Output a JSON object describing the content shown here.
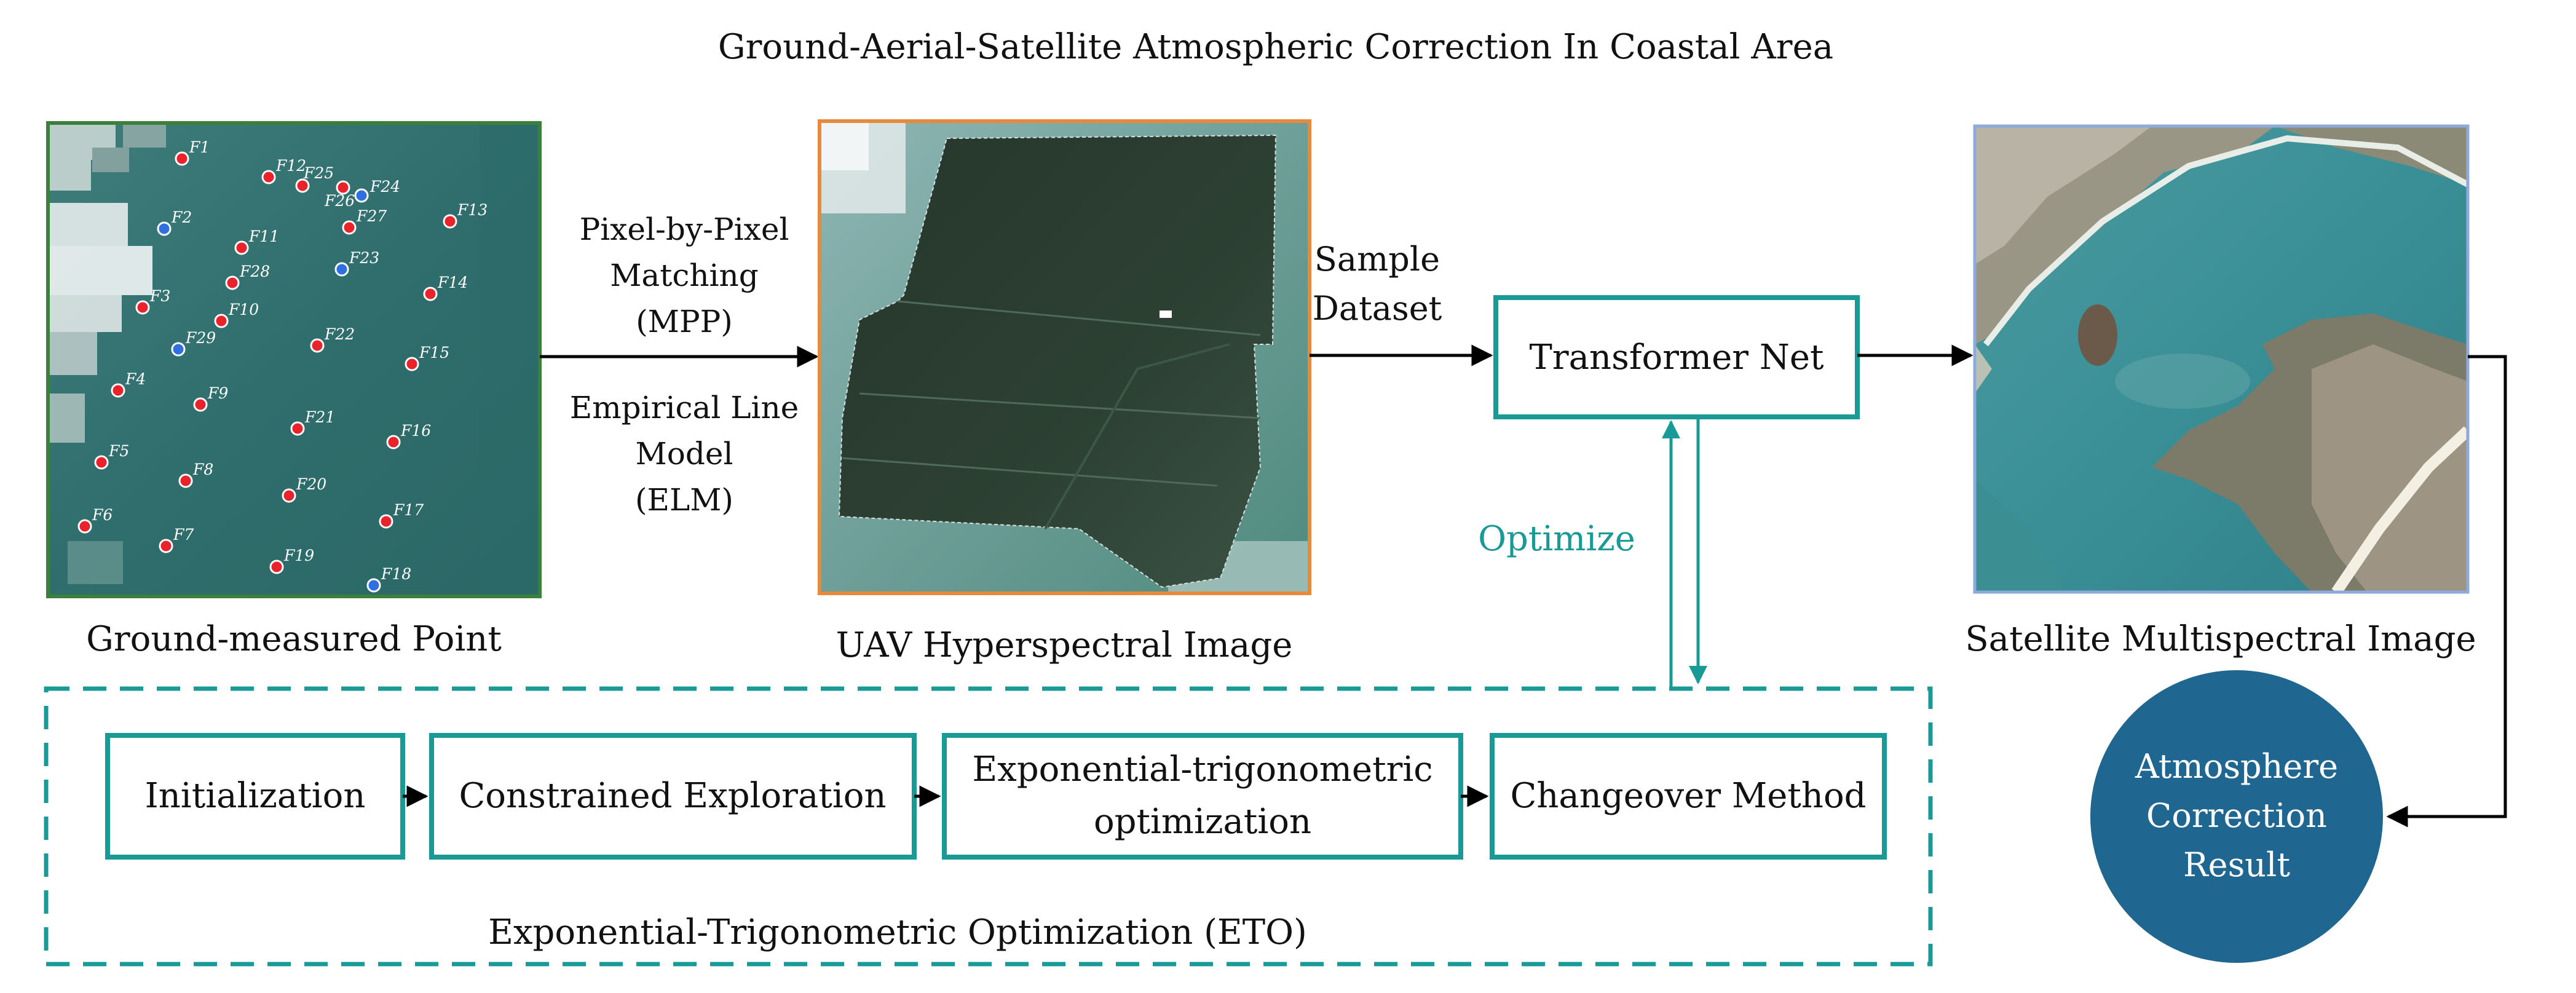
{
  "title": "Ground-Aerial-Satellite Atmospheric Correction In Coastal Area",
  "images": {
    "ground": {
      "caption": "Ground-measured Point"
    },
    "uav": {
      "caption": "UAV Hyperspectral Image"
    },
    "satellite": {
      "caption": "Satellite Multispectral Image"
    }
  },
  "ground_points": [
    {
      "label": "F1",
      "color": "red"
    },
    {
      "label": "F2",
      "color": "blue"
    },
    {
      "label": "F3",
      "color": "red"
    },
    {
      "label": "F4",
      "color": "red"
    },
    {
      "label": "F5",
      "color": "red"
    },
    {
      "label": "F6",
      "color": "red"
    },
    {
      "label": "F7",
      "color": "red"
    },
    {
      "label": "F8",
      "color": "red"
    },
    {
      "label": "F9",
      "color": "red"
    },
    {
      "label": "F10",
      "color": "red"
    },
    {
      "label": "F11",
      "color": "red"
    },
    {
      "label": "F12",
      "color": "red"
    },
    {
      "label": "F13",
      "color": "red"
    },
    {
      "label": "F14",
      "color": "red"
    },
    {
      "label": "F15",
      "color": "red"
    },
    {
      "label": "F16",
      "color": "red"
    },
    {
      "label": "F17",
      "color": "red"
    },
    {
      "label": "F18",
      "color": "blue"
    },
    {
      "label": "F19",
      "color": "red"
    },
    {
      "label": "F20",
      "color": "red"
    },
    {
      "label": "F21",
      "color": "red"
    },
    {
      "label": "F22",
      "color": "red"
    },
    {
      "label": "F23",
      "color": "blue"
    },
    {
      "label": "F24",
      "color": "blue"
    },
    {
      "label": "F25",
      "color": "red"
    },
    {
      "label": "F26",
      "color": "red"
    },
    {
      "label": "F27",
      "color": "red"
    },
    {
      "label": "F28",
      "color": "red"
    },
    {
      "label": "F29",
      "color": "blue"
    }
  ],
  "matching": {
    "top": [
      "Pixel-by-Pixel",
      "Matching",
      "(MPP)"
    ],
    "bottom": [
      "Empirical Line",
      "Model",
      "(ELM)"
    ]
  },
  "sample_dataset": [
    "Sample",
    "Dataset"
  ],
  "transformer": "Transformer Net",
  "optimize": "Optimize",
  "result": [
    "Atmosphere",
    "Correction",
    "Result"
  ],
  "eto": {
    "title": "Exponential-Trigonometric Optimization (ETO)",
    "steps": [
      {
        "label": [
          "Initialization"
        ]
      },
      {
        "label": [
          "Constrained Exploration"
        ]
      },
      {
        "label": [
          "Exponential-trigonometric",
          "optimization"
        ]
      },
      {
        "label": [
          "Changeover Method"
        ]
      }
    ]
  },
  "colors": {
    "teal": "#1a9a96",
    "ground_border": "#3a7f3a",
    "uav_border": "#e88a3c",
    "sat_border": "#8eaadb",
    "result_fill": "#1f6691",
    "point_red": "#e8232b",
    "point_blue": "#2f6fe0"
  }
}
